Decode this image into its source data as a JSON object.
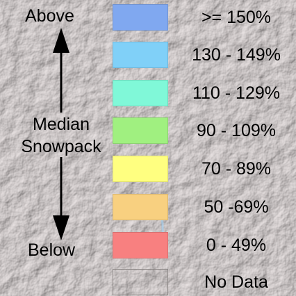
{
  "legend": {
    "label_top": "Above",
    "label_middle_line1": "Median",
    "label_middle_line2": "Snowpack",
    "label_bottom": "Below",
    "items": [
      {
        "label": ">= 150%",
        "color": "#80a8f0"
      },
      {
        "label": "130 - 149%",
        "color": "#80d0f8"
      },
      {
        "label": "110 - 129%",
        "color": "#80f8d8"
      },
      {
        "label": "90 - 109%",
        "color": "#a0f080"
      },
      {
        "label": "70 - 89%",
        "color": "#ffff80"
      },
      {
        "label": "50 -69%",
        "color": "#f8d080"
      },
      {
        "label": "0 - 49%",
        "color": "#f88080"
      },
      {
        "label": "No Data",
        "color": "#d8d0cf"
      }
    ]
  }
}
